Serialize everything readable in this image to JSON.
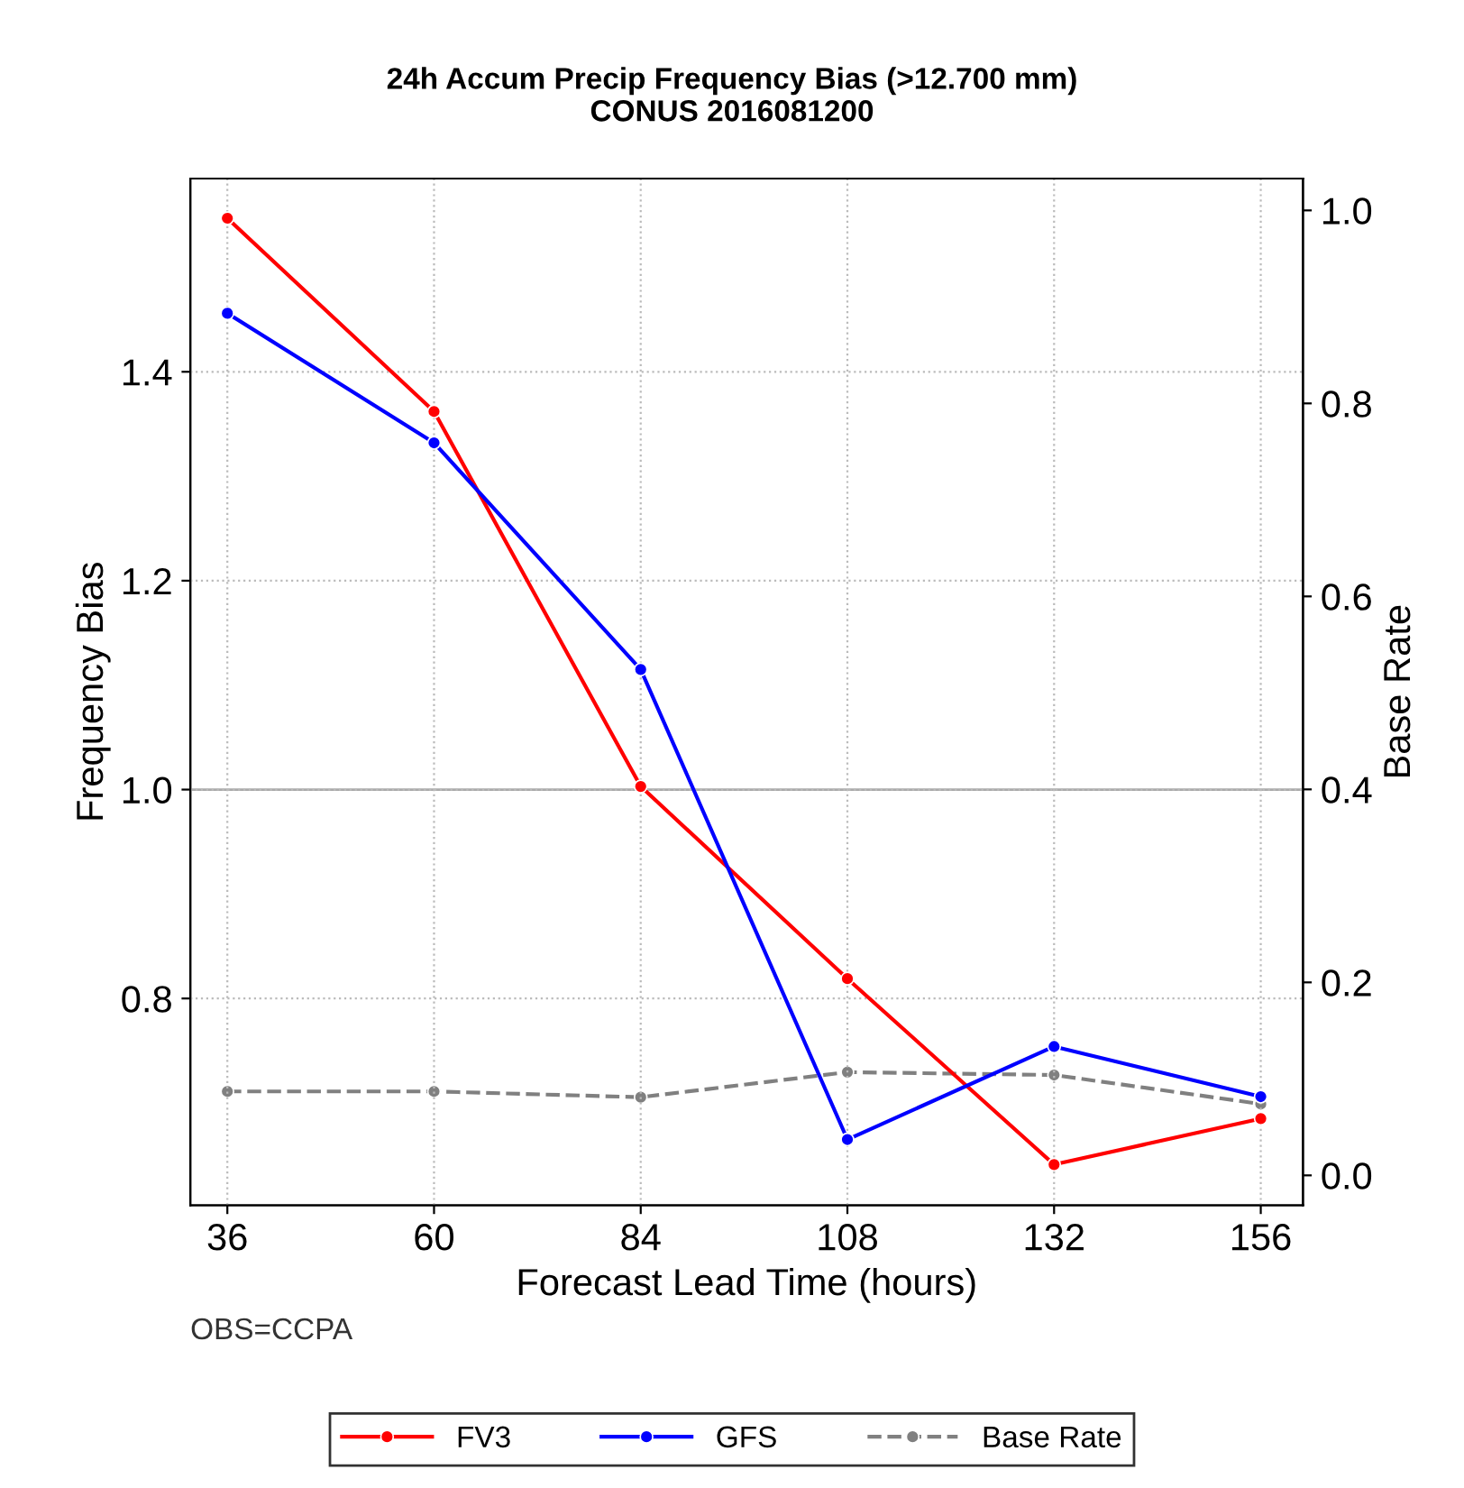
{
  "chart_data": {
    "type": "line",
    "title": "24h Accum Precip Frequency Bias (>12.700 mm)\nCONUS 2016081200",
    "xlabel": "Forecast Lead Time (hours)",
    "ylabel": "Frequency Bias",
    "y2label": "Base Rate",
    "x": [
      36,
      60,
      84,
      108,
      132,
      156
    ],
    "series": [
      {
        "name": "FV3",
        "color": "#ff0000",
        "values": [
          1.547,
          1.362,
          1.003,
          0.819,
          0.641,
          0.685
        ]
      },
      {
        "name": "GFS",
        "color": "#0000ff",
        "values": [
          1.456,
          1.332,
          1.115,
          0.665,
          0.754,
          0.706
        ]
      },
      {
        "name": "Base Rate",
        "color": "#808080",
        "axis": "y2",
        "line_style": "dashed",
        "values": [
          0.087,
          0.087,
          0.081,
          0.107,
          0.104,
          0.074
        ]
      }
    ],
    "xlim": [
      31.7,
      160.9
    ],
    "xticks": [
      36,
      60,
      84,
      108,
      132,
      156
    ],
    "ylim": [
      0.602,
      1.585
    ],
    "yticks": [
      0.8,
      {
        "value": 1,
        "label": "1.0"
      },
      1.2,
      1.4
    ],
    "y2lim": [
      -0.031,
      1.033
    ],
    "y2ticks": [
      {
        "value": 0,
        "label": "0.0"
      },
      0.2,
      0.4,
      0.6,
      0.8,
      {
        "value": 1,
        "label": "1.0"
      }
    ],
    "ref_lines": [
      {
        "axis": "y",
        "value": 1.0,
        "color": "#aaaaaa",
        "line_style": "solid"
      }
    ],
    "annotations": [
      "OBS=CCPA"
    ],
    "grid": true,
    "legend": "bottom",
    "marker": "circle",
    "line_style": "solid"
  }
}
